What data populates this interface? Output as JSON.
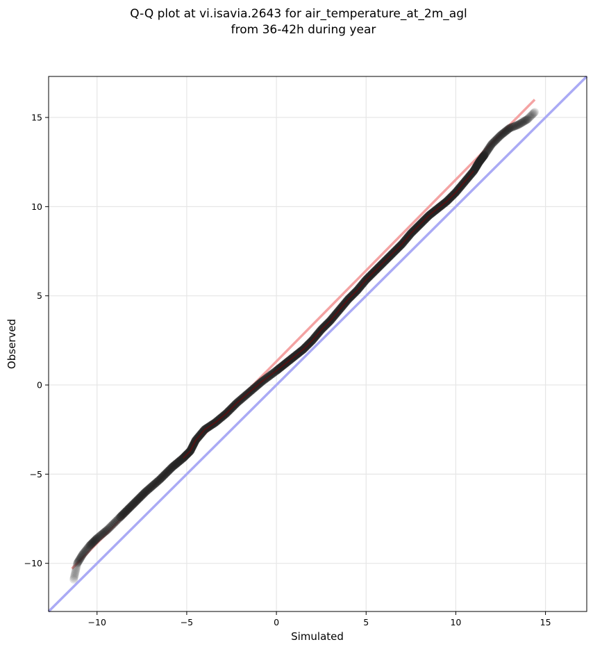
{
  "chart_data": {
    "type": "scatter",
    "title": "Q-Q plot at vi.isavia.2643 for air_temperature_at_2m_agl",
    "subtitle": "from 36-42h during year",
    "xlabel": "Simulated",
    "ylabel": "Observed",
    "xlim": [
      -12.7,
      17.3
    ],
    "ylim": [
      -12.7,
      17.3
    ],
    "xticks": [
      -10,
      -5,
      0,
      5,
      10,
      15
    ],
    "yticks": [
      -10,
      -5,
      0,
      5,
      10,
      15
    ],
    "xtick_labels": [
      "−10",
      "−5",
      "0",
      "5",
      "10",
      "15"
    ],
    "ytick_labels": [
      "−10",
      "−5",
      "0",
      "5",
      "10",
      "15"
    ],
    "grid": true,
    "quantile_curve": {
      "x": [
        -11.3,
        -11.1,
        -10.8,
        -10.4,
        -10.0,
        -9.4,
        -8.7,
        -8.0,
        -7.3,
        -6.5,
        -5.8,
        -5.2,
        -4.8,
        -4.5,
        -4.0,
        -3.4,
        -2.8,
        -2.2,
        -1.5,
        -0.8,
        0.0,
        0.5,
        1.0,
        1.5,
        2.0,
        2.5,
        3.0,
        3.5,
        4.0,
        4.5,
        5.0,
        5.5,
        6.0,
        6.5,
        7.0,
        7.5,
        8.0,
        8.5,
        9.0,
        9.5,
        10.0,
        10.5,
        11.0,
        11.3,
        11.6,
        12.0,
        12.5,
        13.0,
        13.5,
        14.0,
        14.4
      ],
      "y": [
        -10.9,
        -10.0,
        -9.5,
        -9.0,
        -8.6,
        -8.1,
        -7.4,
        -6.7,
        -6.0,
        -5.3,
        -4.6,
        -4.1,
        -3.7,
        -3.1,
        -2.5,
        -2.1,
        -1.6,
        -1.0,
        -0.4,
        0.2,
        0.8,
        1.2,
        1.6,
        2.0,
        2.5,
        3.1,
        3.6,
        4.2,
        4.8,
        5.3,
        5.9,
        6.4,
        6.9,
        7.4,
        7.9,
        8.5,
        9.0,
        9.5,
        9.9,
        10.3,
        10.8,
        11.4,
        12.0,
        12.5,
        12.9,
        13.5,
        14.0,
        14.4,
        14.6,
        14.9,
        15.3
      ]
    },
    "fit_line": {
      "x": [
        -11.4,
        14.4
      ],
      "y": [
        -10.3,
        16.0
      ],
      "color": "#f4a3a3"
    },
    "reference_line": {
      "x": [
        -12.7,
        17.3
      ],
      "y": [
        -12.7,
        17.3
      ],
      "color": "#aaaaf5"
    },
    "marker_color": "#222222"
  }
}
